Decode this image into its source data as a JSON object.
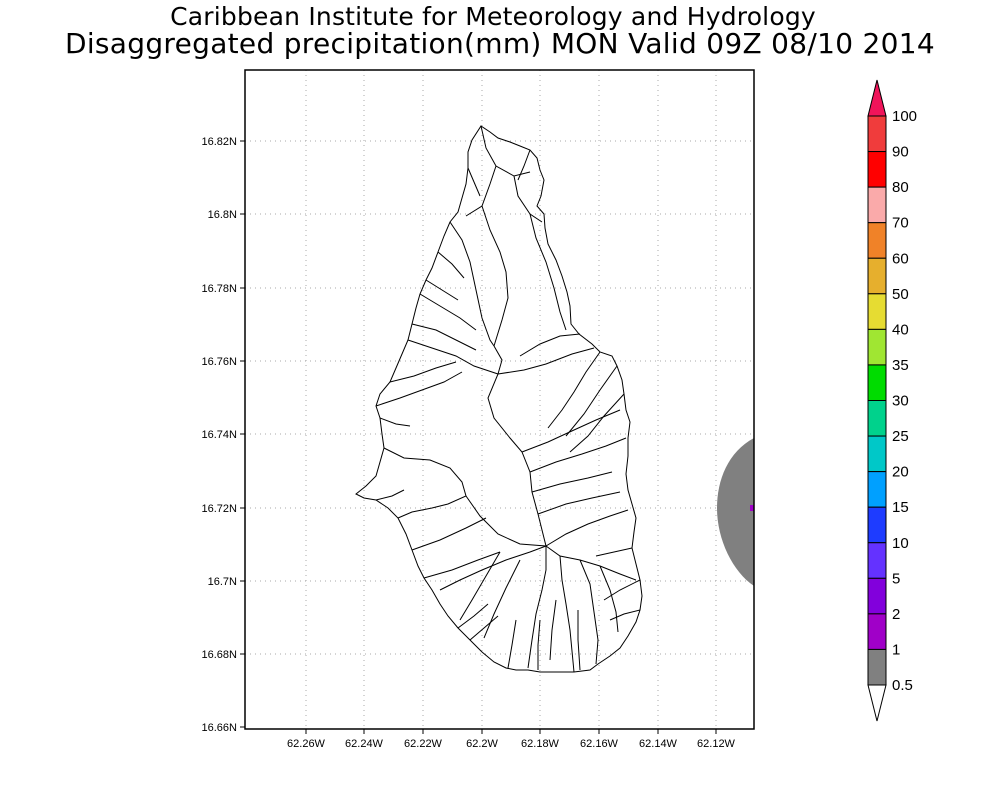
{
  "header": {
    "line1": "Caribbean Institute for Meteorology and Hydrology",
    "line2": "Disaggregated precipitation(mm) MON Valid 09Z 08/10 2014"
  },
  "map": {
    "y_ticks": [
      "16.82N",
      "16.8N",
      "16.78N",
      "16.76N",
      "16.74N",
      "16.72N",
      "16.7N",
      "16.68N",
      "16.66N"
    ],
    "x_ticks": [
      "62.26W",
      "62.24W",
      "62.22W",
      "62.2W",
      "62.18W",
      "62.16W",
      "62.14W",
      "62.12W"
    ],
    "grid": "dotted",
    "frame_color": "#000000",
    "outline_color": "#000000"
  },
  "precip_blob": {
    "class_label": "1",
    "color": "#808080",
    "center_marker_color": "#a000c8"
  },
  "colorbar": {
    "labels": [
      "100",
      "90",
      "80",
      "70",
      "60",
      "50",
      "40",
      "35",
      "30",
      "25",
      "20",
      "15",
      "10",
      "5",
      "2",
      "1",
      "0.5"
    ],
    "colors": [
      "#f0145a",
      "#f03c3c",
      "#ff0000",
      "#faaaaa",
      "#f08228",
      "#e6af2d",
      "#e6dc32",
      "#a0e632",
      "#00dc00",
      "#00d28c",
      "#00c8c8",
      "#00a0ff",
      "#1e3cff",
      "#6432ff",
      "#8200dc",
      "#a000c8",
      "#808080",
      "#ffffff"
    ]
  }
}
